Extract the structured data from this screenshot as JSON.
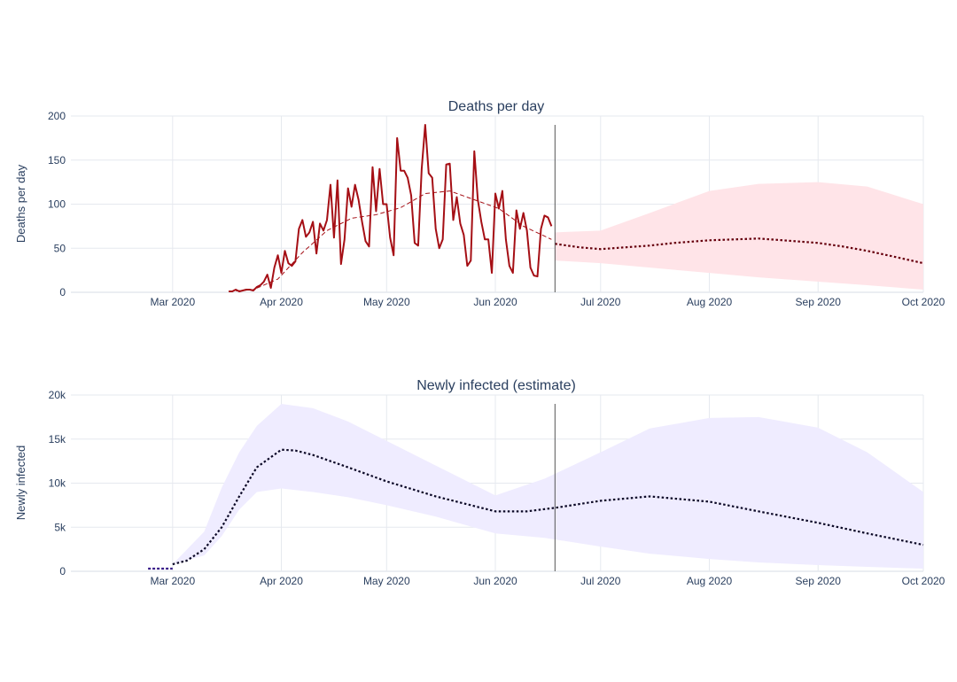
{
  "chart_data": [
    {
      "type": "line",
      "title": "Deaths per day",
      "ylabel": "Deaths per day",
      "xlabel": "",
      "xlim": [
        "2020-02-01",
        "2020-10-01"
      ],
      "ylim": [
        0,
        200
      ],
      "yticks": [
        0,
        50,
        100,
        150,
        200
      ],
      "ytick_labels": [
        "0",
        "50",
        "100",
        "150",
        "200"
      ],
      "xticks": [
        "2020-03-01",
        "2020-04-01",
        "2020-05-01",
        "2020-06-01",
        "2020-07-01",
        "2020-08-01",
        "2020-09-01",
        "2020-10-01"
      ],
      "xtick_labels": [
        "Mar 2020",
        "Apr 2020",
        "May 2020",
        "Jun 2020",
        "Jul 2020",
        "Aug 2020",
        "Sep 2020",
        "Oct 2020"
      ],
      "marker_date": "2020-06-18",
      "grid": true,
      "colors": {
        "observed": "#a50f15",
        "smoothed": "#a50f15",
        "forecast": "#67000d",
        "band": "#ffe4e8",
        "marker": "#555555"
      },
      "series": [
        {
          "style": "observed",
          "x": [
            "2020-03-17",
            "2020-03-18",
            "2020-03-19",
            "2020-03-20",
            "2020-03-21",
            "2020-03-22",
            "2020-03-23",
            "2020-03-24",
            "2020-03-25",
            "2020-03-26",
            "2020-03-27",
            "2020-03-28",
            "2020-03-29",
            "2020-03-30",
            "2020-03-31",
            "2020-04-01",
            "2020-04-02",
            "2020-04-03",
            "2020-04-04",
            "2020-04-05",
            "2020-04-06",
            "2020-04-07",
            "2020-04-08",
            "2020-04-09",
            "2020-04-10",
            "2020-04-11",
            "2020-04-12",
            "2020-04-13",
            "2020-04-14",
            "2020-04-15",
            "2020-04-16",
            "2020-04-17",
            "2020-04-18",
            "2020-04-19",
            "2020-04-20",
            "2020-04-21",
            "2020-04-22",
            "2020-04-23",
            "2020-04-24",
            "2020-04-25",
            "2020-04-26",
            "2020-04-27",
            "2020-04-28",
            "2020-04-29",
            "2020-04-30",
            "2020-05-01",
            "2020-05-02",
            "2020-05-03",
            "2020-05-04",
            "2020-05-05",
            "2020-05-06",
            "2020-05-07",
            "2020-05-08",
            "2020-05-09",
            "2020-05-10",
            "2020-05-11",
            "2020-05-12",
            "2020-05-13",
            "2020-05-14",
            "2020-05-15",
            "2020-05-16",
            "2020-05-17",
            "2020-05-18",
            "2020-05-19",
            "2020-05-20",
            "2020-05-21",
            "2020-05-22",
            "2020-05-23",
            "2020-05-24",
            "2020-05-25",
            "2020-05-26",
            "2020-05-27",
            "2020-05-28",
            "2020-05-29",
            "2020-05-30",
            "2020-05-31",
            "2020-06-01",
            "2020-06-02",
            "2020-06-03",
            "2020-06-04",
            "2020-06-05",
            "2020-06-06",
            "2020-06-07",
            "2020-06-08",
            "2020-06-09",
            "2020-06-10",
            "2020-06-11",
            "2020-06-12",
            "2020-06-13",
            "2020-06-14",
            "2020-06-15",
            "2020-06-16",
            "2020-06-17"
          ],
          "y": [
            1,
            1,
            3,
            1,
            2,
            3,
            3,
            2,
            6,
            8,
            12,
            20,
            5,
            28,
            42,
            22,
            47,
            33,
            30,
            35,
            72,
            82,
            63,
            68,
            80,
            44,
            78,
            70,
            82,
            122,
            62,
            127,
            32,
            60,
            118,
            97,
            122,
            105,
            80,
            58,
            52,
            142,
            92,
            140,
            100,
            100,
            62,
            42,
            175,
            138,
            138,
            130,
            110,
            56,
            53,
            140,
            190,
            135,
            130,
            72,
            50,
            60,
            145,
            146,
            82,
            108,
            78,
            65,
            30,
            36,
            160,
            105,
            80,
            60,
            60,
            22,
            112,
            95,
            115,
            60,
            30,
            22,
            93,
            72,
            90,
            70,
            28,
            19,
            18,
            72,
            87,
            85,
            75
          ]
        },
        {
          "style": "smoothed",
          "x": [
            "2020-03-17",
            "2020-03-24",
            "2020-03-31",
            "2020-04-07",
            "2020-04-14",
            "2020-04-21",
            "2020-04-28",
            "2020-05-05",
            "2020-05-12",
            "2020-05-19",
            "2020-05-26",
            "2020-06-02",
            "2020-06-09",
            "2020-06-17"
          ],
          "y": [
            1,
            3,
            15,
            45,
            70,
            84,
            88,
            96,
            112,
            115,
            105,
            95,
            75,
            60
          ]
        },
        {
          "style": "forecast",
          "x": [
            "2020-06-18",
            "2020-06-25",
            "2020-07-01",
            "2020-07-08",
            "2020-07-15",
            "2020-07-22",
            "2020-08-01",
            "2020-08-08",
            "2020-08-15",
            "2020-08-22",
            "2020-09-01",
            "2020-09-08",
            "2020-09-15",
            "2020-09-22",
            "2020-10-01"
          ],
          "y": [
            55,
            51,
            49,
            51,
            53,
            56,
            59,
            60,
            61,
            59,
            56,
            52,
            47,
            41,
            33
          ]
        },
        {
          "style": "band",
          "x": [
            "2020-06-18",
            "2020-07-01",
            "2020-07-15",
            "2020-08-01",
            "2020-08-15",
            "2020-09-01",
            "2020-09-15",
            "2020-10-01"
          ],
          "lower": [
            36,
            33,
            28,
            22,
            17,
            12,
            8,
            3
          ],
          "upper": [
            68,
            70,
            90,
            115,
            123,
            125,
            120,
            100
          ]
        }
      ]
    },
    {
      "type": "line",
      "title": "Newly infected (estimate)",
      "ylabel": "Newly infected",
      "xlabel": "",
      "xlim": [
        "2020-02-01",
        "2020-10-01"
      ],
      "ylim": [
        0,
        20000
      ],
      "yticks": [
        0,
        5000,
        10000,
        15000,
        20000
      ],
      "ytick_labels": [
        "0",
        "5k",
        "10k",
        "15k",
        "20k"
      ],
      "xticks": [
        "2020-03-01",
        "2020-04-01",
        "2020-05-01",
        "2020-06-01",
        "2020-07-01",
        "2020-08-01",
        "2020-09-01",
        "2020-10-01"
      ],
      "xtick_labels": [
        "Mar 2020",
        "Apr 2020",
        "May 2020",
        "Jun 2020",
        "Jul 2020",
        "Aug 2020",
        "Sep 2020",
        "Oct 2020"
      ],
      "marker_date": "2020-06-18",
      "grid": true,
      "colors": {
        "initial": "#3b1f8a",
        "forecast": "#0b0826",
        "band": "#efecff",
        "marker": "#555555"
      },
      "series": [
        {
          "style": "initial",
          "x": [
            "2020-02-23",
            "2020-03-01"
          ],
          "y": [
            300,
            300
          ]
        },
        {
          "style": "forecast",
          "x": [
            "2020-03-01",
            "2020-03-05",
            "2020-03-10",
            "2020-03-15",
            "2020-03-20",
            "2020-03-25",
            "2020-04-01",
            "2020-04-05",
            "2020-04-10",
            "2020-04-20",
            "2020-05-01",
            "2020-05-15",
            "2020-06-01",
            "2020-06-10",
            "2020-06-18",
            "2020-07-01",
            "2020-07-15",
            "2020-08-01",
            "2020-08-15",
            "2020-09-01",
            "2020-09-15",
            "2020-10-01"
          ],
          "y": [
            800,
            1200,
            2500,
            5000,
            8500,
            11800,
            13800,
            13700,
            13200,
            11800,
            10200,
            8500,
            6800,
            6800,
            7200,
            8000,
            8500,
            7900,
            6800,
            5500,
            4300,
            3000
          ]
        },
        {
          "style": "band",
          "x": [
            "2020-03-01",
            "2020-03-10",
            "2020-03-15",
            "2020-03-20",
            "2020-03-25",
            "2020-04-01",
            "2020-04-10",
            "2020-04-20",
            "2020-05-01",
            "2020-05-15",
            "2020-06-01",
            "2020-06-15",
            "2020-07-01",
            "2020-07-15",
            "2020-08-01",
            "2020-08-15",
            "2020-09-01",
            "2020-09-15",
            "2020-10-01"
          ],
          "lower": [
            800,
            1800,
            4000,
            7000,
            9000,
            9400,
            9000,
            8400,
            7500,
            6200,
            4300,
            3800,
            2800,
            2000,
            1400,
            1000,
            700,
            500,
            300
          ],
          "upper": [
            800,
            4500,
            9500,
            13500,
            16500,
            19000,
            18500,
            17000,
            14800,
            12000,
            8600,
            10500,
            13500,
            16200,
            17400,
            17500,
            16300,
            13500,
            9000
          ]
        }
      ]
    }
  ]
}
